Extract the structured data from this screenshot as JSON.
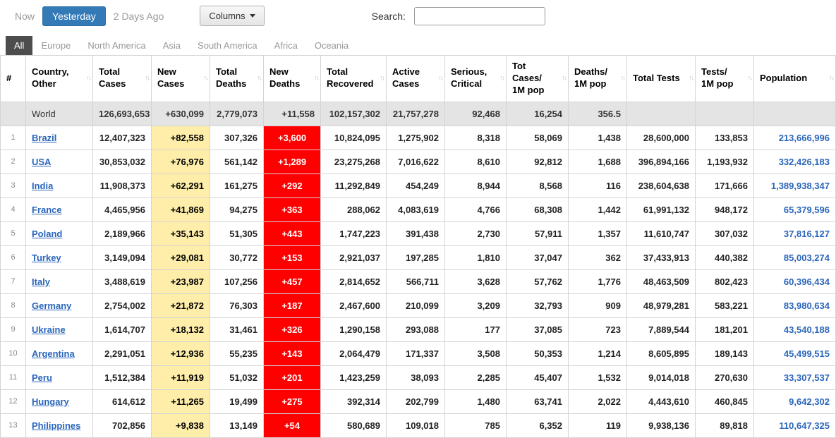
{
  "colors": {
    "link": "#2a66bb",
    "primary_button": "#337ab7",
    "new_cases_bg": "#ffeeaa",
    "new_deaths_bg": "#ff0000",
    "active_tab_bg": "#4d4d4d",
    "world_row_bg": "#e4e4e4"
  },
  "toolbar": {
    "now_label": "Now",
    "yesterday_label": "Yesterday",
    "two_days_ago_label": "2 Days Ago",
    "columns_label": "Columns",
    "search_label": "Search:",
    "search_value": ""
  },
  "tabs": [
    {
      "label": "All",
      "active": true
    },
    {
      "label": "Europe",
      "active": false
    },
    {
      "label": "North America",
      "active": false
    },
    {
      "label": "Asia",
      "active": false
    },
    {
      "label": "South America",
      "active": false
    },
    {
      "label": "Africa",
      "active": false
    },
    {
      "label": "Oceania",
      "active": false
    }
  ],
  "table": {
    "headers": [
      {
        "label": "#",
        "sortable": false
      },
      {
        "label": "Country, Other",
        "sortable": true
      },
      {
        "label": "Total Cases",
        "sortable": true
      },
      {
        "label": "New Cases",
        "sortable": true
      },
      {
        "label": "Total Deaths",
        "sortable": true
      },
      {
        "label": "New Deaths",
        "sortable": true
      },
      {
        "label": "Total Recovered",
        "sortable": true
      },
      {
        "label": "Active Cases",
        "sortable": true
      },
      {
        "label": "Serious, Critical",
        "sortable": true
      },
      {
        "label": "Tot Cases/ 1M pop",
        "sortable": true
      },
      {
        "label": "Deaths/ 1M pop",
        "sortable": true
      },
      {
        "label": "Total Tests",
        "sortable": true
      },
      {
        "label": "Tests/ 1M pop",
        "sortable": true
      },
      {
        "label": "Population",
        "sortable": true
      }
    ],
    "world_row": {
      "rank": "",
      "country": "World",
      "total_cases": "126,693,653",
      "new_cases": "+630,099",
      "total_deaths": "2,779,073",
      "new_deaths": "+11,558",
      "total_recovered": "102,157,302",
      "active_cases": "21,757,278",
      "serious_critical": "92,468",
      "cases_per_1m": "16,254",
      "deaths_per_1m": "356.5",
      "total_tests": "",
      "tests_per_1m": "",
      "population": ""
    },
    "rows": [
      {
        "rank": "1",
        "country": "Brazil",
        "total_cases": "12,407,323",
        "new_cases": "+82,558",
        "total_deaths": "307,326",
        "new_deaths": "+3,600",
        "total_recovered": "10,824,095",
        "active_cases": "1,275,902",
        "serious_critical": "8,318",
        "cases_per_1m": "58,069",
        "deaths_per_1m": "1,438",
        "total_tests": "28,600,000",
        "tests_per_1m": "133,853",
        "population": "213,666,996"
      },
      {
        "rank": "2",
        "country": "USA",
        "total_cases": "30,853,032",
        "new_cases": "+76,976",
        "total_deaths": "561,142",
        "new_deaths": "+1,289",
        "total_recovered": "23,275,268",
        "active_cases": "7,016,622",
        "serious_critical": "8,610",
        "cases_per_1m": "92,812",
        "deaths_per_1m": "1,688",
        "total_tests": "396,894,166",
        "tests_per_1m": "1,193,932",
        "population": "332,426,183"
      },
      {
        "rank": "3",
        "country": "India",
        "total_cases": "11,908,373",
        "new_cases": "+62,291",
        "total_deaths": "161,275",
        "new_deaths": "+292",
        "total_recovered": "11,292,849",
        "active_cases": "454,249",
        "serious_critical": "8,944",
        "cases_per_1m": "8,568",
        "deaths_per_1m": "116",
        "total_tests": "238,604,638",
        "tests_per_1m": "171,666",
        "population": "1,389,938,347"
      },
      {
        "rank": "4",
        "country": "France",
        "total_cases": "4,465,956",
        "new_cases": "+41,869",
        "total_deaths": "94,275",
        "new_deaths": "+363",
        "total_recovered": "288,062",
        "active_cases": "4,083,619",
        "serious_critical": "4,766",
        "cases_per_1m": "68,308",
        "deaths_per_1m": "1,442",
        "total_tests": "61,991,132",
        "tests_per_1m": "948,172",
        "population": "65,379,596"
      },
      {
        "rank": "5",
        "country": "Poland",
        "total_cases": "2,189,966",
        "new_cases": "+35,143",
        "total_deaths": "51,305",
        "new_deaths": "+443",
        "total_recovered": "1,747,223",
        "active_cases": "391,438",
        "serious_critical": "2,730",
        "cases_per_1m": "57,911",
        "deaths_per_1m": "1,357",
        "total_tests": "11,610,747",
        "tests_per_1m": "307,032",
        "population": "37,816,127"
      },
      {
        "rank": "6",
        "country": "Turkey",
        "total_cases": "3,149,094",
        "new_cases": "+29,081",
        "total_deaths": "30,772",
        "new_deaths": "+153",
        "total_recovered": "2,921,037",
        "active_cases": "197,285",
        "serious_critical": "1,810",
        "cases_per_1m": "37,047",
        "deaths_per_1m": "362",
        "total_tests": "37,433,913",
        "tests_per_1m": "440,382",
        "population": "85,003,274"
      },
      {
        "rank": "7",
        "country": "Italy",
        "total_cases": "3,488,619",
        "new_cases": "+23,987",
        "total_deaths": "107,256",
        "new_deaths": "+457",
        "total_recovered": "2,814,652",
        "active_cases": "566,711",
        "serious_critical": "3,628",
        "cases_per_1m": "57,762",
        "deaths_per_1m": "1,776",
        "total_tests": "48,463,509",
        "tests_per_1m": "802,423",
        "population": "60,396,434"
      },
      {
        "rank": "8",
        "country": "Germany",
        "total_cases": "2,754,002",
        "new_cases": "+21,872",
        "total_deaths": "76,303",
        "new_deaths": "+187",
        "total_recovered": "2,467,600",
        "active_cases": "210,099",
        "serious_critical": "3,209",
        "cases_per_1m": "32,793",
        "deaths_per_1m": "909",
        "total_tests": "48,979,281",
        "tests_per_1m": "583,221",
        "population": "83,980,634"
      },
      {
        "rank": "9",
        "country": "Ukraine",
        "total_cases": "1,614,707",
        "new_cases": "+18,132",
        "total_deaths": "31,461",
        "new_deaths": "+326",
        "total_recovered": "1,290,158",
        "active_cases": "293,088",
        "serious_critical": "177",
        "cases_per_1m": "37,085",
        "deaths_per_1m": "723",
        "total_tests": "7,889,544",
        "tests_per_1m": "181,201",
        "population": "43,540,188"
      },
      {
        "rank": "10",
        "country": "Argentina",
        "total_cases": "2,291,051",
        "new_cases": "+12,936",
        "total_deaths": "55,235",
        "new_deaths": "+143",
        "total_recovered": "2,064,479",
        "active_cases": "171,337",
        "serious_critical": "3,508",
        "cases_per_1m": "50,353",
        "deaths_per_1m": "1,214",
        "total_tests": "8,605,895",
        "tests_per_1m": "189,143",
        "population": "45,499,515"
      },
      {
        "rank": "11",
        "country": "Peru",
        "total_cases": "1,512,384",
        "new_cases": "+11,919",
        "total_deaths": "51,032",
        "new_deaths": "+201",
        "total_recovered": "1,423,259",
        "active_cases": "38,093",
        "serious_critical": "2,285",
        "cases_per_1m": "45,407",
        "deaths_per_1m": "1,532",
        "total_tests": "9,014,018",
        "tests_per_1m": "270,630",
        "population": "33,307,537"
      },
      {
        "rank": "12",
        "country": "Hungary",
        "total_cases": "614,612",
        "new_cases": "+11,265",
        "total_deaths": "19,499",
        "new_deaths": "+275",
        "total_recovered": "392,314",
        "active_cases": "202,799",
        "serious_critical": "1,480",
        "cases_per_1m": "63,741",
        "deaths_per_1m": "2,022",
        "total_tests": "4,443,610",
        "tests_per_1m": "460,845",
        "population": "9,642,302"
      },
      {
        "rank": "13",
        "country": "Philippines",
        "total_cases": "702,856",
        "new_cases": "+9,838",
        "total_deaths": "13,149",
        "new_deaths": "+54",
        "total_recovered": "580,689",
        "active_cases": "109,018",
        "serious_critical": "785",
        "cases_per_1m": "6,352",
        "deaths_per_1m": "119",
        "total_tests": "9,938,136",
        "tests_per_1m": "89,818",
        "population": "110,647,325"
      }
    ]
  }
}
